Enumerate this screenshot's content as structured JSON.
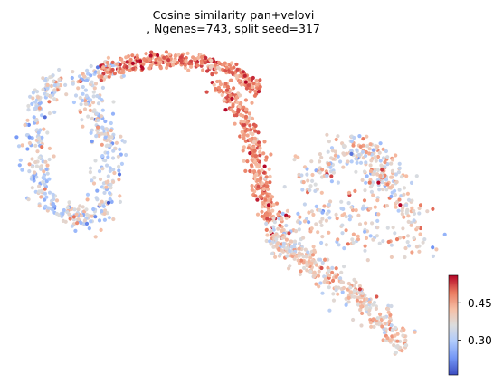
{
  "chart_data": {
    "type": "scatter",
    "title": [
      "Cosine similarity pan+velovi",
      ", Ngenes=743, split seed=317"
    ],
    "xlabel": "",
    "ylabel": "",
    "axes_visible": false,
    "grid": false,
    "colormap": "coolwarm",
    "colorbar": {
      "position": "bottom-right",
      "range": [
        0.16,
        0.56
      ],
      "ticks": [
        0.3,
        0.45
      ],
      "tick_labels": [
        "0.30",
        "0.45"
      ]
    },
    "color_stops": [
      "#3b4cc0",
      "#7396f5",
      "#b0cbfc",
      "#dcdddd",
      "#f6bfa6",
      "#ea7b60",
      "#b40426"
    ],
    "regions": [
      {
        "name": "left loop",
        "value_mean": 0.34,
        "value_spread": 0.06
      },
      {
        "name": "top arc",
        "value_mean": 0.48,
        "value_spread": 0.04
      },
      {
        "name": "central stem",
        "value_mean": 0.47,
        "value_spread": 0.04
      },
      {
        "name": "right lobe",
        "value_mean": 0.38,
        "value_spread": 0.06
      },
      {
        "name": "lower tail",
        "value_mean": 0.4,
        "value_spread": 0.05
      }
    ]
  }
}
